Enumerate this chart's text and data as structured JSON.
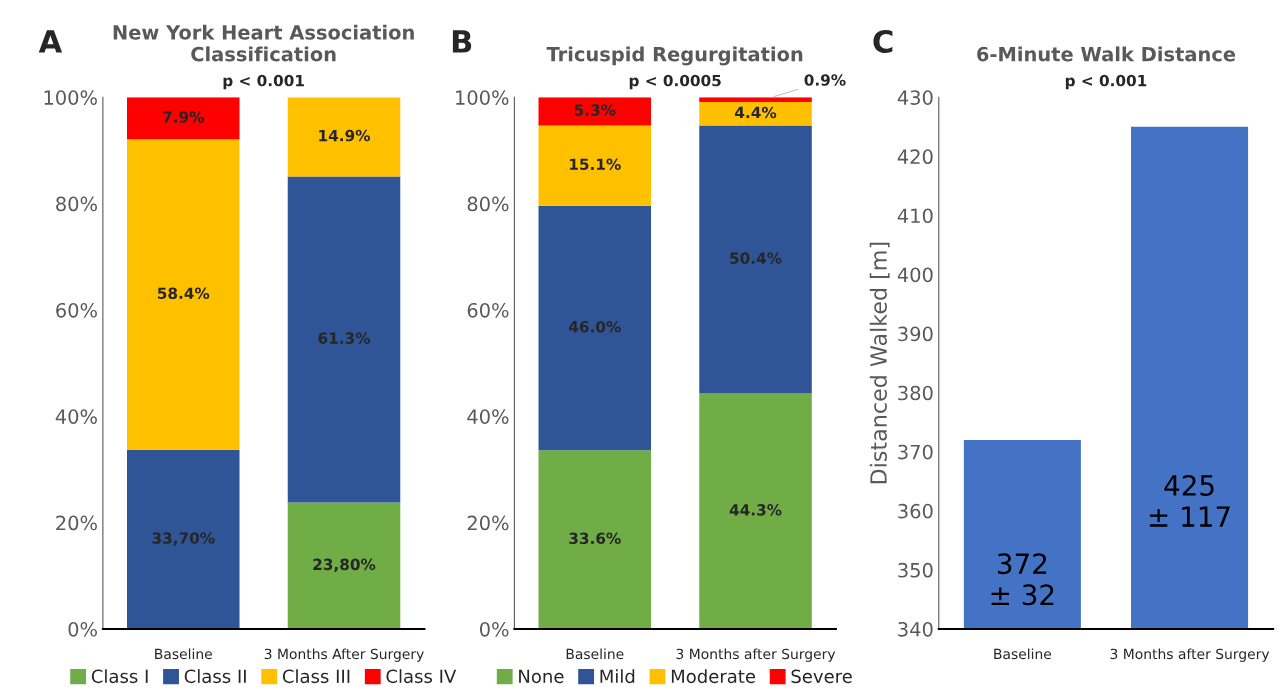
{
  "chart_data": [
    {
      "type": "bar",
      "title": "New York Heart Association\nClassification",
      "categories": [
        "Baseline",
        "3 Months After Surgery"
      ],
      "stacked": true,
      "legend": "bottom",
      "ylim": [
        0,
        100
      ],
      "yticks": [
        {
          "value": 0,
          "label": "0%"
        },
        {
          "value": 20,
          "label": "20%"
        },
        {
          "value": 40,
          "label": "40%"
        },
        {
          "value": 60,
          "label": "60%"
        },
        {
          "value": 80,
          "label": "80%"
        },
        {
          "value": 100,
          "label": "100%"
        }
      ],
      "annotations": [
        "A",
        "p < 0.001"
      ],
      "series": [
        {
          "name": "Class I",
          "color": "#70ad47",
          "values": [
            null,
            23.8
          ],
          "value_labels": [
            null,
            "23,80%"
          ]
        },
        {
          "name": "Class II",
          "color": "#2f5597",
          "values": [
            33.7,
            61.3
          ],
          "value_labels": [
            "33,70%",
            "61.3%"
          ]
        },
        {
          "name": "Class III",
          "color": "#ffc000",
          "values": [
            58.4,
            14.9
          ],
          "value_labels": [
            "58.4%",
            "14.9%"
          ]
        },
        {
          "name": "Class IV",
          "color": "#ff0000",
          "values": [
            7.9,
            null
          ],
          "value_labels": [
            "7.9%",
            null
          ]
        }
      ]
    },
    {
      "type": "bar",
      "title": "Tricuspid Regurgitation",
      "categories": [
        "Baseline",
        "3 Months after Surgery"
      ],
      "stacked": true,
      "legend": "bottom",
      "ylim": [
        0,
        100
      ],
      "yticks": [
        {
          "value": 0,
          "label": "0%"
        },
        {
          "value": 20,
          "label": "20%"
        },
        {
          "value": 40,
          "label": "40%"
        },
        {
          "value": 60,
          "label": "60%"
        },
        {
          "value": 80,
          "label": "80%"
        },
        {
          "value": 100,
          "label": "100%"
        }
      ],
      "annotations": [
        "B",
        "p < 0.0005"
      ],
      "series": [
        {
          "name": "None",
          "color": "#70ad47",
          "values": [
            33.6,
            44.3
          ],
          "value_labels": [
            "33.6%",
            "44.3%"
          ]
        },
        {
          "name": "Mild",
          "color": "#2f5597",
          "values": [
            46.0,
            50.4
          ],
          "value_labels": [
            "46.0%",
            "50.4%"
          ]
        },
        {
          "name": "Moderate",
          "color": "#ffc000",
          "values": [
            15.1,
            4.4
          ],
          "value_labels": [
            "15.1%",
            "4.4%"
          ]
        },
        {
          "name": "Severe",
          "color": "#ff0000",
          "values": [
            5.3,
            0.9
          ],
          "value_labels": [
            "5.3%",
            "0.9%"
          ]
        }
      ]
    },
    {
      "type": "bar",
      "title": "6-Minute Walk Distance",
      "ylabel": "Distanced Walked [m]",
      "categories": [
        "Baseline",
        "3 Months after Surgery"
      ],
      "ylim": [
        340,
        430
      ],
      "yticks": [
        340,
        350,
        360,
        370,
        380,
        390,
        400,
        410,
        420,
        430
      ],
      "annotations": [
        "C",
        "p < 0.001"
      ],
      "series": [
        {
          "color": "#4472c4",
          "values": [
            372,
            425
          ],
          "value_labels": [
            "372\n± 32",
            "425\n± 117"
          ]
        }
      ]
    }
  ]
}
